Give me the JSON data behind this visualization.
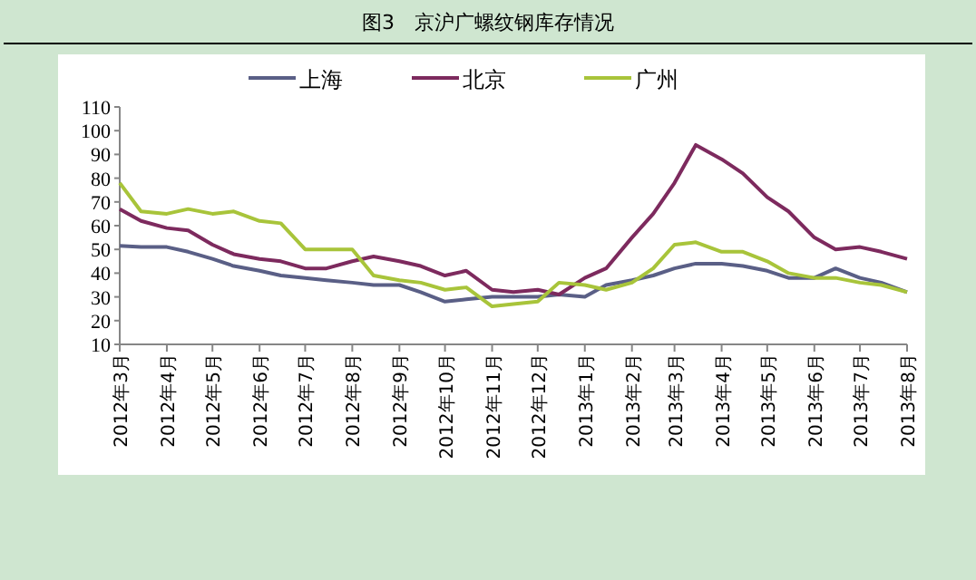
{
  "chart_data": {
    "type": "line",
    "title": "图3　京沪广螺纹钢库存情况",
    "x": [
      "2012-03-01",
      "2012-03-15",
      "2012-04-01",
      "2012-04-15",
      "2012-05-01",
      "2012-05-15",
      "2012-06-01",
      "2012-06-15",
      "2012-07-01",
      "2012-07-15",
      "2012-08-01",
      "2012-08-15",
      "2012-09-01",
      "2012-09-15",
      "2012-10-01",
      "2012-10-15",
      "2012-11-01",
      "2012-11-15",
      "2012-12-01",
      "2012-12-15",
      "2013-01-01",
      "2013-01-15",
      "2013-02-01",
      "2013-02-15",
      "2013-03-01",
      "2013-03-15",
      "2013-04-01",
      "2013-04-15",
      "2013-05-01",
      "2013-05-15",
      "2013-06-01",
      "2013-06-15",
      "2013-07-01",
      "2013-07-15",
      "2013-08-01"
    ],
    "series": [
      {
        "name": "上海",
        "color": "#5a5f86",
        "values": [
          51.5,
          51,
          51,
          49,
          46,
          43,
          41,
          39,
          38,
          37,
          36,
          35,
          35,
          32,
          28,
          29,
          30,
          30,
          30,
          31,
          30,
          35,
          37,
          39,
          42,
          44,
          44,
          43,
          41,
          38,
          38,
          42,
          38,
          36,
          32
        ]
      },
      {
        "name": "北京",
        "color": "#7d2a5e",
        "values": [
          67,
          62,
          59,
          58,
          52,
          48,
          46,
          45,
          42,
          42,
          45,
          47,
          45,
          43,
          39,
          41,
          33,
          32,
          33,
          31,
          38,
          42,
          55,
          65,
          78,
          94,
          88,
          82,
          72,
          66,
          55,
          50,
          51,
          49,
          46
        ]
      },
      {
        "name": "广州",
        "color": "#a8c43a",
        "values": [
          78,
          66,
          65,
          67,
          65,
          66,
          62,
          61,
          50,
          50,
          50,
          39,
          37,
          36,
          33,
          34,
          26,
          27,
          28,
          36,
          35,
          33,
          36,
          42,
          52,
          53,
          49,
          49,
          45,
          40,
          38,
          38,
          36,
          35,
          32
        ]
      }
    ],
    "xlim": [
      "2012-03-01",
      "2013-08-01"
    ],
    "xticks": [
      {
        "value": "2012-03-01",
        "label": "2012年3月"
      },
      {
        "value": "2012-04-01",
        "label": "2012年4月"
      },
      {
        "value": "2012-05-01",
        "label": "2012年5月"
      },
      {
        "value": "2012-06-01",
        "label": "2012年6月"
      },
      {
        "value": "2012-07-01",
        "label": "2012年7月"
      },
      {
        "value": "2012-08-01",
        "label": "2012年8月"
      },
      {
        "value": "2012-09-01",
        "label": "2012年9月"
      },
      {
        "value": "2012-10-01",
        "label": "2012年10月"
      },
      {
        "value": "2012-11-01",
        "label": "2012年11月"
      },
      {
        "value": "2012-12-01",
        "label": "2012年12月"
      },
      {
        "value": "2013-01-01",
        "label": "2013年1月"
      },
      {
        "value": "2013-02-01",
        "label": "2013年2月"
      },
      {
        "value": "2013-03-01",
        "label": "2013年3月"
      },
      {
        "value": "2013-04-01",
        "label": "2013年4月"
      },
      {
        "value": "2013-05-01",
        "label": "2013年5月"
      },
      {
        "value": "2013-06-01",
        "label": "2013年6月"
      },
      {
        "value": "2013-07-01",
        "label": "2013年7月"
      },
      {
        "value": "2013-08-01",
        "label": "2013年8月"
      }
    ],
    "ylim": [
      10,
      110
    ],
    "yticks": [
      10,
      20,
      30,
      40,
      50,
      60,
      70,
      80,
      90,
      100,
      110
    ],
    "legend": "top",
    "grid": false,
    "marker": "none",
    "line_style": "solid"
  }
}
